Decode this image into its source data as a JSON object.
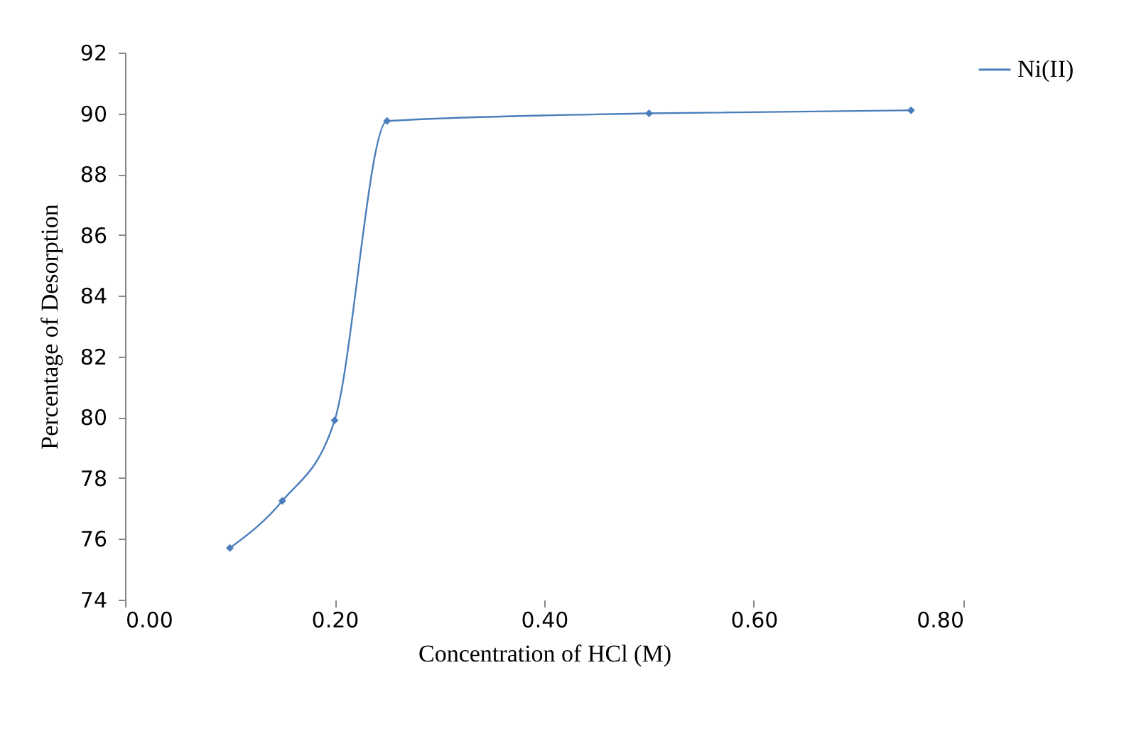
{
  "chart_data": {
    "type": "line",
    "xlabel": "Concentration of HCl (M)",
    "ylabel": "Percentage of Desorption",
    "x": [
      0.1,
      0.15,
      0.2,
      0.25,
      0.5,
      0.75
    ],
    "series": [
      {
        "name": "Ni(II)",
        "color": "#4a7ebb",
        "values": [
          75.7,
          77.25,
          79.9,
          89.75,
          90.0,
          90.1
        ]
      }
    ],
    "xlim": [
      0,
      0.8
    ],
    "xticks": [
      {
        "value": 0,
        "label": "0.00"
      },
      {
        "value": 0.2,
        "label": "0.20"
      },
      {
        "value": 0.4,
        "label": "0.40"
      },
      {
        "value": 0.6,
        "label": "0.60"
      },
      {
        "value": 0.8,
        "label": "0.80"
      }
    ],
    "ylim": [
      74,
      92
    ],
    "yticks": [
      74,
      76,
      78,
      80,
      82,
      84,
      86,
      88,
      90,
      92
    ],
    "grid": false,
    "legend": "top right",
    "marker": "diamond",
    "line_style": "solid"
  }
}
